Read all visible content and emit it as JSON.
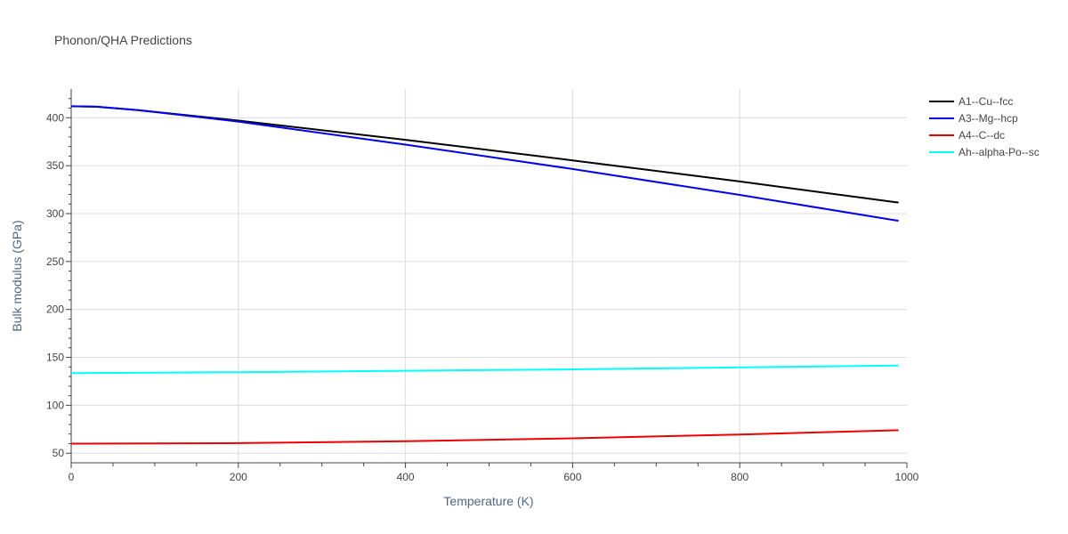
{
  "chart_data": {
    "type": "line",
    "title": "Phonon/QHA Predictions",
    "xlabel": "Temperature (K)",
    "ylabel": "Bulk modulus (GPa)",
    "xlim": [
      0,
      1000
    ],
    "ylim": [
      40,
      430
    ],
    "xticks": [
      0,
      200,
      400,
      600,
      800,
      1000
    ],
    "yticks": [
      50,
      100,
      150,
      200,
      250,
      300,
      350,
      400
    ],
    "grid": true,
    "legend_position": "top-right",
    "series": [
      {
        "name": "A1--Cu--fcc",
        "color": "#000000",
        "x": [
          0,
          30,
          80,
          200,
          400,
          600,
          800,
          990
        ],
        "y": [
          412,
          411.5,
          408,
          397,
          377,
          355.5,
          333.5,
          311.5
        ]
      },
      {
        "name": "A3--Mg--hcp",
        "color": "#0000ee",
        "x": [
          0,
          30,
          80,
          200,
          400,
          600,
          800,
          990
        ],
        "y": [
          412,
          411.5,
          408,
          396,
          372,
          346.5,
          319.5,
          292.5
        ]
      },
      {
        "name": "A4--C--dc",
        "color": "#ee0000",
        "x": [
          0,
          200,
          400,
          600,
          800,
          990
        ],
        "y": [
          60,
          60.5,
          62.5,
          65.5,
          69.5,
          74
        ]
      },
      {
        "name": "Ah--alpha-Po--sc",
        "color": "#00ffff",
        "x": [
          0,
          200,
          400,
          600,
          800,
          990
        ],
        "y": [
          133.5,
          134.5,
          136,
          137.5,
          139.5,
          141.5
        ]
      }
    ]
  }
}
